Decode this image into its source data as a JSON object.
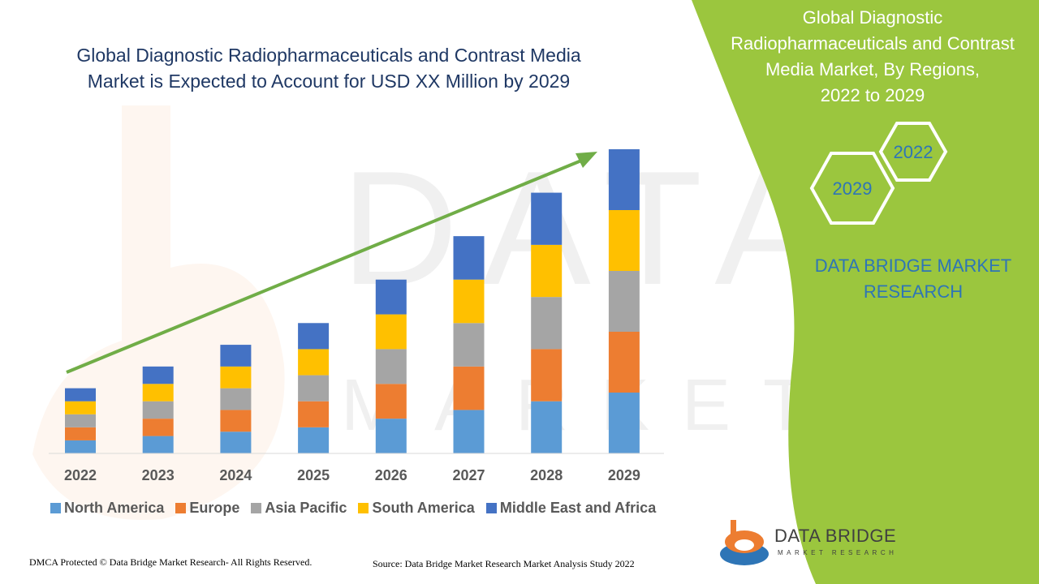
{
  "title_line1": "Global Diagnostic Radiopharmaceuticals and Contrast Media",
  "title_line2": "Market is Expected to Account for USD XX Million by 2029",
  "side_panel": {
    "title_line1": "Global Diagnostic",
    "title_line2": "Radiopharmaceuticals and Contrast",
    "title_line3": "Media Market, By Regions,",
    "title_line4": "2022 to 2029",
    "hex_top": "2022",
    "hex_bottom": "2029",
    "brand_line1": "DATA BRIDGE MARKET",
    "brand_line2": "RESEARCH",
    "color": "#9bc63e"
  },
  "logo": {
    "name": "DATA BRIDGE",
    "sub": "MARKET RESEARCH"
  },
  "footer": {
    "left": "DMCA Protected © Data Bridge Market Research- All Rights Reserved.",
    "right": "Source: Data Bridge Market Research Market Analysis Study 2022"
  },
  "chart_data": {
    "type": "bar",
    "stacked": true,
    "categories": [
      "2022",
      "2023",
      "2024",
      "2025",
      "2026",
      "2027",
      "2028",
      "2029"
    ],
    "series": [
      {
        "name": "North America",
        "color": "#5b9bd5",
        "values": [
          3,
          4,
          5,
          6,
          8,
          10,
          12,
          14
        ]
      },
      {
        "name": "Europe",
        "color": "#ed7d31",
        "values": [
          3,
          4,
          5,
          6,
          8,
          10,
          12,
          14
        ]
      },
      {
        "name": "Asia Pacific",
        "color": "#a5a5a5",
        "values": [
          3,
          4,
          5,
          6,
          8,
          10,
          12,
          14
        ]
      },
      {
        "name": "South America",
        "color": "#ffc000",
        "values": [
          3,
          4,
          5,
          6,
          8,
          10,
          12,
          14
        ]
      },
      {
        "name": "Middle East and Africa",
        "color": "#4472c4",
        "values": [
          3,
          4,
          5,
          6,
          8,
          10,
          12,
          14
        ]
      }
    ],
    "ylim": [
      0,
      70
    ],
    "grid": false,
    "legend": "bottom",
    "trend_arrow": {
      "from": "2022",
      "to": "2029",
      "color": "#70ad47"
    }
  }
}
